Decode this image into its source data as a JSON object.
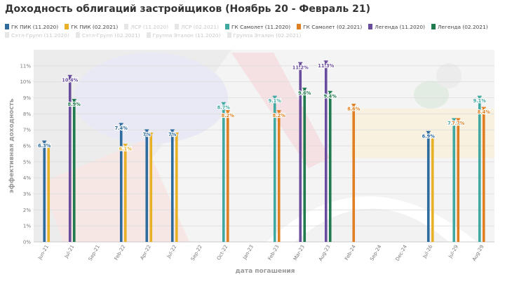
{
  "chart_data": {
    "type": "bar",
    "title": "Доходность облигаций застройщиков (Ноябрь 20 - Февраль 21)",
    "xlabel": "дата погашения",
    "ylabel": "эффективная доходность",
    "ylim": [
      0,
      12
    ],
    "y_ticks": [
      "0%",
      "1%",
      "2%",
      "3%",
      "4%",
      "5%",
      "6%",
      "7%",
      "8%",
      "9%",
      "10%",
      "11%"
    ],
    "x_ticks": [
      "Jun-21",
      "Jul-21",
      "Sep-21",
      "Feb-22",
      "Apr-22",
      "Jul-22",
      "Sep-22",
      "Oct-22",
      "Jan-23",
      "Feb-23",
      "Mar-23",
      "Aug-23",
      "Feb-24",
      "Sep-24",
      "Dec-24",
      "Jul-26",
      "Jul-29",
      "Aug-29"
    ],
    "grid": true,
    "legend_position": "top",
    "series": [
      {
        "name": "ГК ПИК (11.2020)",
        "color": "#2e6b9e",
        "visible": true
      },
      {
        "name": "ГК ПИК (02.2021)",
        "color": "#e8b025",
        "visible": true
      },
      {
        "name": "ЛСР (11.2020)",
        "color": "#cfe3b3",
        "visible": false
      },
      {
        "name": "ЛСР (02.2021)",
        "color": "#dcc8d8",
        "visible": false
      },
      {
        "name": "ГК Самолет (11.2020)",
        "color": "#3fa8a0",
        "visible": true
      },
      {
        "name": "ГК Самолет (02.2021)",
        "color": "#e07f22",
        "visible": true
      },
      {
        "name": "Легенда (11.2020)",
        "color": "#6a4c9c",
        "visible": true
      },
      {
        "name": "Легенда (02.2021)",
        "color": "#1f7a4d",
        "visible": true
      },
      {
        "name": "Сэтл-Групп (11.2020)",
        "color": "#d6d6d6",
        "visible": false
      },
      {
        "name": "Сэтл-Групп (02.2021)",
        "color": "#f1c9c9",
        "visible": false
      },
      {
        "name": "Группа Эталон (11.2020)",
        "color": "#e6b8b8",
        "visible": false
      },
      {
        "name": "Группа Эталон (02.2021)",
        "color": "#d9d9d9",
        "visible": false
      }
    ],
    "points": [
      {
        "x": "Jun-21",
        "series": 0,
        "value": 6.3,
        "label": "6.3%"
      },
      {
        "x": "Jun-21",
        "series": 1,
        "value": 6.0
      },
      {
        "x": "Jul-21",
        "series": 6,
        "value": 10.4,
        "label": "10.4%"
      },
      {
        "x": "Jul-21",
        "series": 7,
        "value": 8.9,
        "label": "8.9%"
      },
      {
        "x": "Feb-22",
        "series": 0,
        "value": 7.4,
        "label": "7.4%"
      },
      {
        "x": "Feb-22",
        "series": 1,
        "value": 6.1,
        "label": "6.1%"
      },
      {
        "x": "Apr-22",
        "series": 0,
        "value": 7.0,
        "label": "7%"
      },
      {
        "x": "Apr-22",
        "series": 1,
        "value": 6.8
      },
      {
        "x": "Jul-22",
        "series": 0,
        "value": 7.0,
        "label": "7%"
      },
      {
        "x": "Jul-22",
        "series": 1,
        "value": 6.8
      },
      {
        "x": "Oct-22",
        "series": 4,
        "value": 8.7,
        "label": "8.7%"
      },
      {
        "x": "Oct-22",
        "series": 5,
        "value": 8.2,
        "label": "8.2%"
      },
      {
        "x": "Feb-23",
        "series": 4,
        "value": 9.1,
        "label": "9.1%"
      },
      {
        "x": "Feb-23",
        "series": 5,
        "value": 8.2,
        "label": "8.2%"
      },
      {
        "x": "Mar-23",
        "series": 6,
        "value": 11.2,
        "label": "11.2%"
      },
      {
        "x": "Mar-23",
        "series": 7,
        "value": 9.6,
        "label": "9.6%"
      },
      {
        "x": "Aug-23",
        "series": 6,
        "value": 11.3,
        "label": "11.3%"
      },
      {
        "x": "Aug-23",
        "series": 7,
        "value": 9.4,
        "label": "9.4%"
      },
      {
        "x": "Feb-24",
        "series": 5,
        "value": 8.6,
        "label": "8.6%"
      },
      {
        "x": "Jul-26",
        "series": 0,
        "value": 6.9,
        "label": "6.9%"
      },
      {
        "x": "Jul-26",
        "series": 1,
        "value": 6.6
      },
      {
        "x": "Jul-29",
        "series": 4,
        "value": 7.7,
        "label": "7.7%"
      },
      {
        "x": "Jul-29",
        "series": 5,
        "value": 7.7,
        "label": "7.7%"
      },
      {
        "x": "Aug-29",
        "series": 4,
        "value": 9.1,
        "label": "9.1%"
      },
      {
        "x": "Aug-29",
        "series": 5,
        "value": 8.4,
        "label": "8.4%"
      }
    ]
  }
}
